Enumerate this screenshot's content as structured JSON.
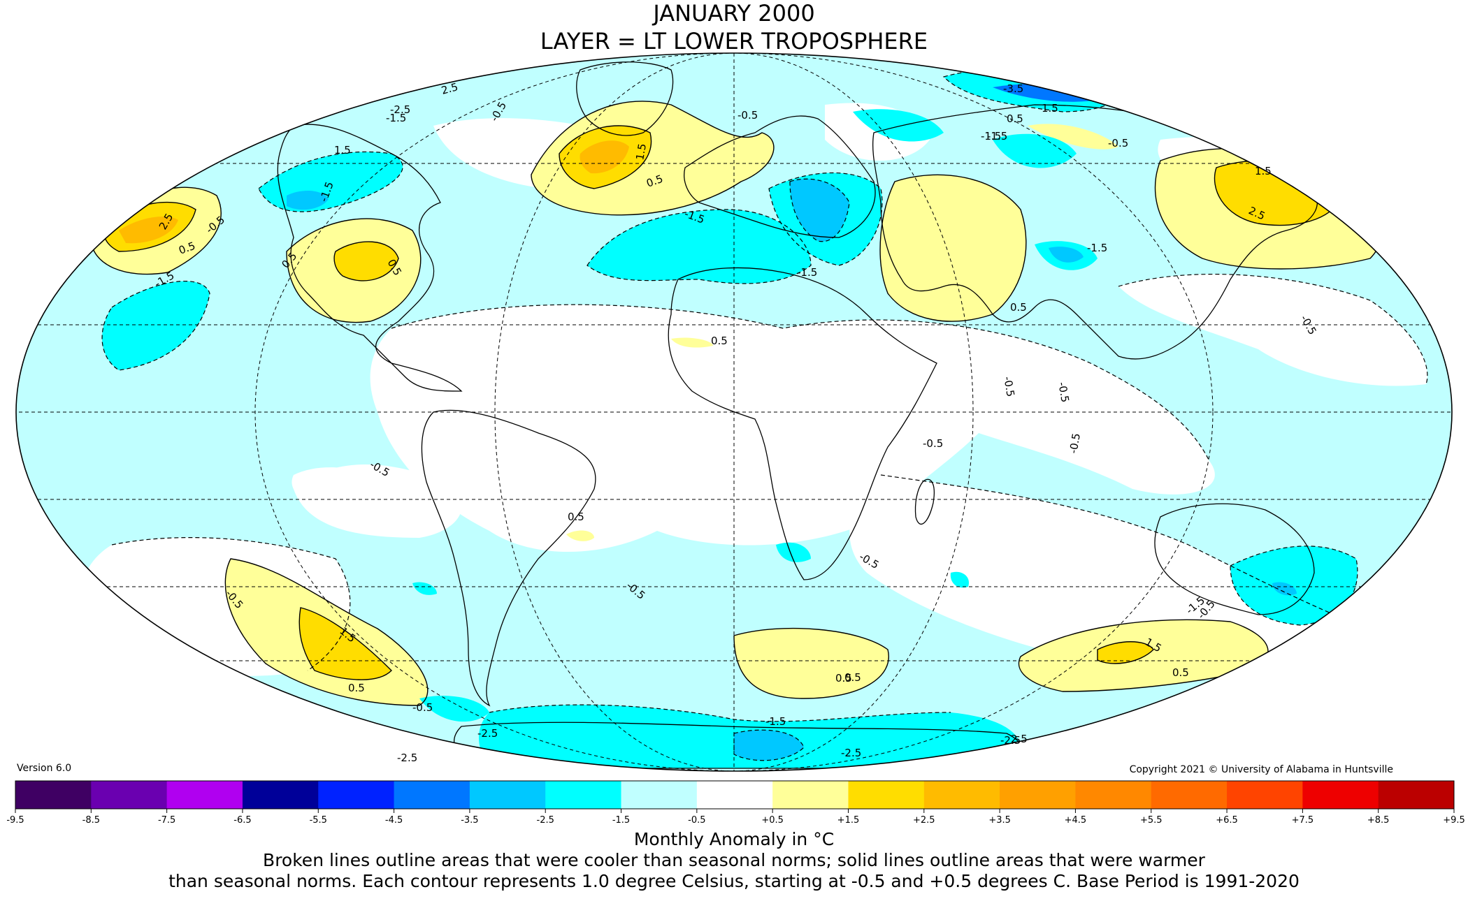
{
  "title_line1": "JANUARY 2000",
  "title_line2": "LAYER = LT LOWER TROPOSPHERE",
  "version": "Version 6.0",
  "copyright": "Copyright 2021 © University of Alabama in Huntsville",
  "colorbar": {
    "colors": [
      "#3f0063",
      "#6a00b0",
      "#b000f0",
      "#000099",
      "#0022ff",
      "#0077ff",
      "#00c8ff",
      "#00ffff",
      "#c0ffff",
      "#ffffff",
      "#ffff99",
      "#ffdd00",
      "#ffbb00",
      "#ffa000",
      "#ff8800",
      "#ff6a00",
      "#ff4400",
      "#ee0000",
      "#bb0000"
    ],
    "ticks": [
      "-9.5",
      "-8.5",
      "-7.5",
      "-6.5",
      "-5.5",
      "-4.5",
      "-3.5",
      "-2.5",
      "-1.5",
      "-0.5",
      "+0.5",
      "+1.5",
      "+2.5",
      "+3.5",
      "+4.5",
      "+5.5",
      "+6.5",
      "+7.5",
      "+8.5",
      "+9.5"
    ],
    "label": "Monthly Anomaly in °C"
  },
  "note_line1": "Broken lines outline areas that were cooler than seasonal norms; solid lines outline areas that were warmer",
  "note_line2": "than seasonal norms. Each contour represents 1.0 degree Celsius, starting at -0.5 and +0.5 degrees C. Base Period is 1991-2020",
  "contour_labels": [
    "2.5",
    "-1.5",
    "1.5",
    "-0.5",
    "0.5",
    "2.5",
    "-1.5",
    "0.5",
    "-1.5",
    "0.5",
    "-2.5",
    "-0.5",
    "0.5",
    "1.5",
    "-3.5",
    "0.5",
    "-1.5",
    "-1.5",
    "1.5",
    "-0.5",
    "1.5",
    "-1.5",
    "0.5",
    "-0.5",
    "2.5",
    "-0.5",
    "-1.5",
    "-1.5",
    "0.5",
    "-0.5",
    "-0.5",
    "-0.5",
    "-0.5",
    "0.5",
    "0.5",
    "-0.5",
    "-0.5",
    "-0.5",
    "-1.5",
    "-0.5",
    "1.5",
    "0.5",
    "-0.5",
    "0.5",
    "1.5",
    "0.5",
    "-2.5",
    "-1.5",
    "-2.5",
    "-2.5",
    "2.5",
    "-2.5",
    "-0.5"
  ]
}
